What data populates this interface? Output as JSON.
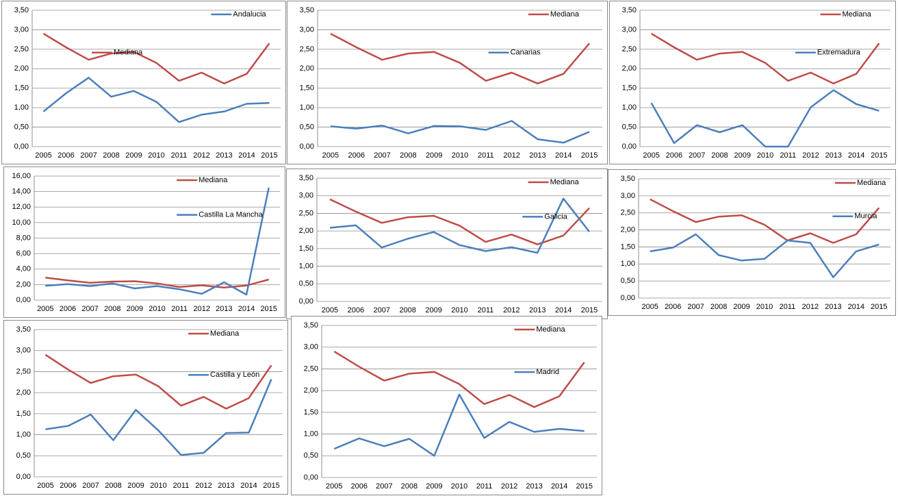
{
  "chart_data": [
    {
      "type": "line",
      "categories": [
        "2005",
        "2006",
        "2007",
        "2008",
        "2009",
        "2010",
        "2011",
        "2012",
        "2013",
        "2014",
        "2015"
      ],
      "series": [
        {
          "name": "Andalucia",
          "color": "#4a7ebb",
          "values": [
            0.9,
            1.37,
            1.77,
            1.28,
            1.43,
            1.15,
            0.63,
            0.82,
            0.9,
            1.1,
            1.12
          ]
        },
        {
          "name": "Mediana",
          "color": "#be4b48",
          "values": [
            2.9,
            2.55,
            2.23,
            2.39,
            2.43,
            2.15,
            1.69,
            1.9,
            1.62,
            1.87,
            2.65
          ]
        }
      ],
      "ylim": [
        0,
        3.5
      ],
      "yticks": [
        {
          "value": 0,
          "label": "0,00"
        },
        {
          "value": 0.5,
          "label": "0,50"
        },
        {
          "value": 1,
          "label": "1,00"
        },
        {
          "value": 1.5,
          "label": "1,50"
        },
        {
          "value": 2,
          "label": "2,00"
        },
        {
          "value": 2.5,
          "label": "2,50"
        },
        {
          "value": 3,
          "label": "3,00"
        },
        {
          "value": 3.5,
          "label": "3,50"
        }
      ],
      "grid": true
    },
    {
      "type": "line",
      "categories": [
        "2005",
        "2006",
        "2007",
        "2008",
        "2009",
        "2010",
        "2011",
        "2012",
        "2013",
        "2014",
        "2015"
      ],
      "series": [
        {
          "name": "Mediana",
          "color": "#be4b48",
          "values": [
            2.9,
            2.55,
            2.23,
            2.39,
            2.43,
            2.15,
            1.69,
            1.9,
            1.62,
            1.87,
            2.65
          ]
        },
        {
          "name": "Canarias",
          "color": "#4a7ebb",
          "values": [
            0.52,
            0.46,
            0.54,
            0.34,
            0.53,
            0.52,
            0.43,
            0.66,
            0.19,
            0.1,
            0.38
          ]
        }
      ],
      "ylim": [
        0,
        3.5
      ],
      "yticks": [
        {
          "value": 0,
          "label": "0,00"
        },
        {
          "value": 0.5,
          "label": "0,50"
        },
        {
          "value": 1,
          "label": "1,00"
        },
        {
          "value": 1.5,
          "label": "1,50"
        },
        {
          "value": 2,
          "label": "2,00"
        },
        {
          "value": 2.5,
          "label": "2,50"
        },
        {
          "value": 3,
          "label": "3,00"
        },
        {
          "value": 3.5,
          "label": "3,50"
        }
      ],
      "grid": true
    },
    {
      "type": "line",
      "categories": [
        "2005",
        "2006",
        "2007",
        "2008",
        "2009",
        "2010",
        "2011",
        "2012",
        "2013",
        "2014",
        "2015"
      ],
      "series": [
        {
          "name": "Mediana",
          "color": "#be4b48",
          "values": [
            2.9,
            2.55,
            2.23,
            2.39,
            2.43,
            2.15,
            1.69,
            1.9,
            1.62,
            1.87,
            2.65
          ]
        },
        {
          "name": "Extremadura",
          "color": "#4a7ebb",
          "values": [
            1.12,
            0.09,
            0.55,
            0.37,
            0.55,
            0.0,
            0.0,
            1.01,
            1.45,
            1.09,
            0.92
          ]
        }
      ],
      "ylim": [
        0,
        3.5
      ],
      "yticks": [
        {
          "value": 0,
          "label": "0,00"
        },
        {
          "value": 0.5,
          "label": "0,50"
        },
        {
          "value": 1,
          "label": "1,00"
        },
        {
          "value": 1.5,
          "label": "1,50"
        },
        {
          "value": 2,
          "label": "2,00"
        },
        {
          "value": 2.5,
          "label": "2,50"
        },
        {
          "value": 3,
          "label": "3,00"
        },
        {
          "value": 3.5,
          "label": "3,50"
        }
      ],
      "grid": true
    },
    {
      "type": "line",
      "categories": [
        "2005",
        "2006",
        "2007",
        "2008",
        "2009",
        "2010",
        "2011",
        "2012",
        "2013",
        "2014",
        "2015"
      ],
      "series": [
        {
          "name": "Mediana",
          "color": "#be4b48",
          "values": [
            2.9,
            2.55,
            2.23,
            2.39,
            2.43,
            2.15,
            1.69,
            1.9,
            1.62,
            1.87,
            2.65
          ]
        },
        {
          "name": "Castilla La Mancha",
          "color": "#4a7ebb",
          "values": [
            1.85,
            2.05,
            1.8,
            2.15,
            1.5,
            1.8,
            1.4,
            0.8,
            2.3,
            0.7,
            14.5
          ]
        }
      ],
      "ylim": [
        0,
        16
      ],
      "yticks": [
        {
          "value": 0,
          "label": "0,00"
        },
        {
          "value": 2,
          "label": "2,00"
        },
        {
          "value": 4,
          "label": "4,00"
        },
        {
          "value": 6,
          "label": "6,00"
        },
        {
          "value": 8,
          "label": "8,00"
        },
        {
          "value": 10,
          "label": "10,00"
        },
        {
          "value": 12,
          "label": "12,00"
        },
        {
          "value": 14,
          "label": "14,00"
        },
        {
          "value": 16,
          "label": "16,00"
        }
      ],
      "grid": true
    },
    {
      "type": "line",
      "categories": [
        "2005",
        "2006",
        "2007",
        "2008",
        "2009",
        "2010",
        "2011",
        "2012",
        "2013",
        "2014",
        "2015"
      ],
      "series": [
        {
          "name": "Mediana",
          "color": "#be4b48",
          "values": [
            2.9,
            2.55,
            2.23,
            2.39,
            2.43,
            2.15,
            1.69,
            1.9,
            1.62,
            1.87,
            2.65
          ]
        },
        {
          "name": "Galicia",
          "color": "#4a7ebb",
          "values": [
            2.09,
            2.16,
            1.53,
            1.78,
            1.97,
            1.6,
            1.43,
            1.54,
            1.38,
            2.92,
            1.98
          ]
        }
      ],
      "ylim": [
        0,
        3.5
      ],
      "yticks": [
        {
          "value": 0,
          "label": "0,00"
        },
        {
          "value": 0.5,
          "label": "0,50"
        },
        {
          "value": 1,
          "label": "1,00"
        },
        {
          "value": 1.5,
          "label": "1,50"
        },
        {
          "value": 2,
          "label": "2,00"
        },
        {
          "value": 2.5,
          "label": "2,50"
        },
        {
          "value": 3,
          "label": "3,00"
        },
        {
          "value": 3.5,
          "label": "3,50"
        }
      ],
      "grid": true
    },
    {
      "type": "line",
      "categories": [
        "2005",
        "2006",
        "2007",
        "2008",
        "2009",
        "2010",
        "2011",
        "2012",
        "2013",
        "2014",
        "2015"
      ],
      "series": [
        {
          "name": "Mediana",
          "color": "#be4b48",
          "values": [
            2.9,
            2.55,
            2.23,
            2.39,
            2.43,
            2.15,
            1.69,
            1.9,
            1.62,
            1.87,
            2.65
          ]
        },
        {
          "name": "Murcia",
          "color": "#4a7ebb",
          "values": [
            1.37,
            1.48,
            1.87,
            1.26,
            1.1,
            1.15,
            1.69,
            1.62,
            0.61,
            1.37,
            1.57
          ]
        }
      ],
      "ylim": [
        0,
        3.5
      ],
      "yticks": [
        {
          "value": 0,
          "label": "0,00"
        },
        {
          "value": 0.5,
          "label": "0,50"
        },
        {
          "value": 1,
          "label": "1,00"
        },
        {
          "value": 1.5,
          "label": "1,50"
        },
        {
          "value": 2,
          "label": "2,00"
        },
        {
          "value": 2.5,
          "label": "2,50"
        },
        {
          "value": 3,
          "label": "3,00"
        },
        {
          "value": 3.5,
          "label": "3,50"
        }
      ],
      "grid": true
    },
    {
      "type": "line",
      "categories": [
        "2005",
        "2006",
        "2007",
        "2008",
        "2009",
        "2010",
        "2011",
        "2012",
        "2013",
        "2014",
        "2015"
      ],
      "series": [
        {
          "name": "Mediana",
          "color": "#be4b48",
          "values": [
            2.9,
            2.55,
            2.23,
            2.39,
            2.43,
            2.15,
            1.69,
            1.9,
            1.62,
            1.87,
            2.65
          ]
        },
        {
          "name": "Castilla y León",
          "color": "#4a7ebb",
          "values": [
            1.13,
            1.21,
            1.48,
            0.87,
            1.59,
            1.1,
            0.52,
            0.57,
            1.04,
            1.05,
            2.32
          ]
        }
      ],
      "ylim": [
        0,
        3.5
      ],
      "yticks": [
        {
          "value": 0,
          "label": "0,00"
        },
        {
          "value": 0.5,
          "label": "0,50"
        },
        {
          "value": 1,
          "label": "1,00"
        },
        {
          "value": 1.5,
          "label": "1,50"
        },
        {
          "value": 2,
          "label": "2,00"
        },
        {
          "value": 2.5,
          "label": "2,50"
        },
        {
          "value": 3,
          "label": "3,00"
        },
        {
          "value": 3.5,
          "label": "3,50"
        }
      ],
      "grid": true
    },
    {
      "type": "line",
      "categories": [
        "2005",
        "2006",
        "2007",
        "2008",
        "2009",
        "2010",
        "2011",
        "2012",
        "2013",
        "2014",
        "2015"
      ],
      "series": [
        {
          "name": "Mediana",
          "color": "#be4b48",
          "values": [
            2.9,
            2.55,
            2.23,
            2.39,
            2.43,
            2.15,
            1.69,
            1.9,
            1.62,
            1.87,
            2.65
          ]
        },
        {
          "name": "Madrid",
          "color": "#4a7ebb",
          "values": [
            0.66,
            0.9,
            0.72,
            0.89,
            0.5,
            1.91,
            0.91,
            1.28,
            1.05,
            1.12,
            1.07
          ]
        }
      ],
      "ylim": [
        0,
        3.5
      ],
      "yticks": [
        {
          "value": 0,
          "label": "0,00"
        },
        {
          "value": 0.5,
          "label": "0,50"
        },
        {
          "value": 1,
          "label": "1,00"
        },
        {
          "value": 1.5,
          "label": "1,50"
        },
        {
          "value": 2,
          "label": "2,00"
        },
        {
          "value": 2.5,
          "label": "2,50"
        },
        {
          "value": 3,
          "label": "3,00"
        },
        {
          "value": 3.5,
          "label": "3,50"
        }
      ],
      "grid": true
    }
  ]
}
